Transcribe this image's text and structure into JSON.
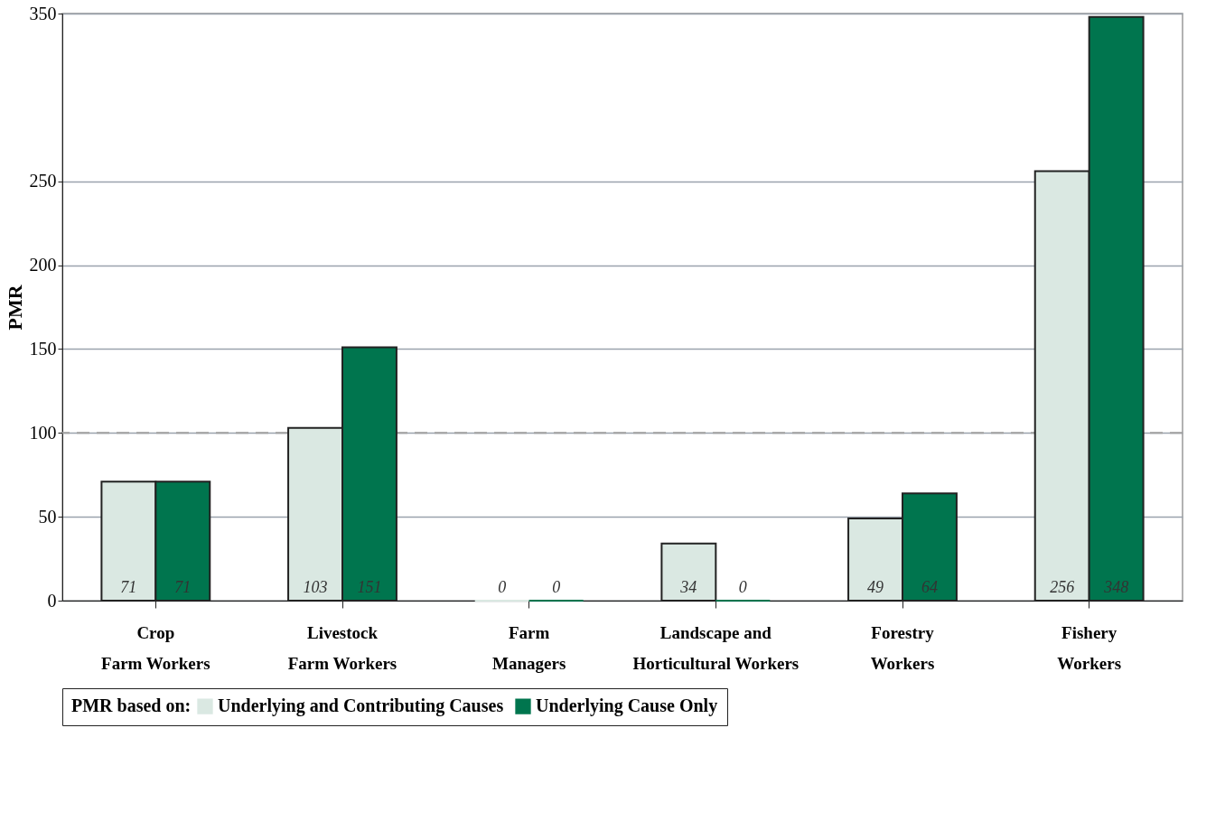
{
  "chart_data": {
    "type": "bar",
    "ylabel": "PMR",
    "legend_title": "PMR based on:",
    "categories": [
      "Crop\nFarm Workers",
      "Livestock\nFarm Workers",
      "Farm\nManagers",
      "Landscape and\nHorticultural Workers",
      "Forestry\nWorkers",
      "Fishery\nWorkers"
    ],
    "series": [
      {
        "name": "Underlying and Contributing Causes",
        "color": "#dae8e2",
        "values": [
          71,
          103,
          0,
          34,
          49,
          256
        ]
      },
      {
        "name": "Underlying Cause Only",
        "color": "#00754e",
        "values": [
          71,
          151,
          0,
          0,
          64,
          348
        ]
      }
    ],
    "ylim": [
      0,
      350
    ],
    "yticks": [
      0,
      50,
      100,
      150,
      200,
      250,
      350
    ],
    "ref_lines": [
      {
        "axis": "y",
        "value": 100,
        "color": "#a0a0a0",
        "line_style": "dashed"
      }
    ],
    "data_labels": true,
    "grid": "y",
    "legend": "bottom"
  }
}
